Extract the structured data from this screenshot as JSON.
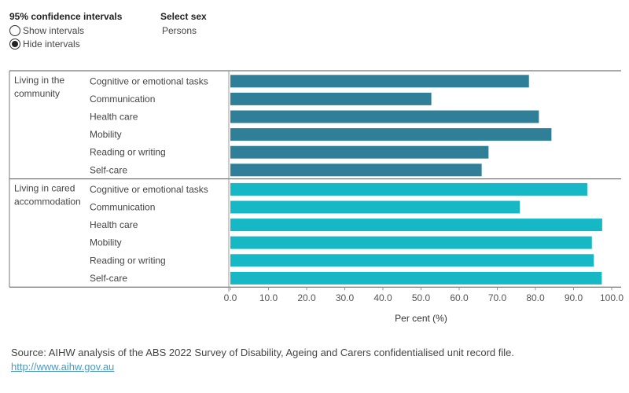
{
  "controls": {
    "ci_title": "95% confidence intervals",
    "ci_options": [
      {
        "label": "Show intervals",
        "selected": false
      },
      {
        "label": "Hide intervals",
        "selected": true
      }
    ],
    "sex_title": "Select sex",
    "sex_value": "Persons"
  },
  "chart_data": {
    "type": "bar",
    "orientation": "horizontal",
    "xlabel": "Per cent (%)",
    "xlim": [
      0,
      100
    ],
    "xticks": [
      "0.0",
      "10.0",
      "20.0",
      "30.0",
      "40.0",
      "50.0",
      "60.0",
      "70.0",
      "80.0",
      "90.0",
      "100.0"
    ],
    "groups": [
      {
        "label": "Living in the community",
        "label_lines": [
          "Living in the",
          "community"
        ],
        "color": "#2f7f98",
        "categories": [
          "Cognitive or emotional tasks",
          "Communication",
          "Health care",
          "Mobility",
          "Reading or writing",
          "Self-care"
        ],
        "values": [
          78.3,
          52.7,
          80.9,
          84.2,
          67.7,
          65.9
        ]
      },
      {
        "label": "Living in cared accommodation",
        "label_lines": [
          "Living in cared",
          "accommodation"
        ],
        "color": "#17b8c6",
        "categories": [
          "Cognitive or emotional tasks",
          "Communication",
          "Health care",
          "Mobility",
          "Reading or writing",
          "Self-care"
        ],
        "values": [
          93.6,
          75.9,
          97.5,
          94.8,
          95.3,
          97.4
        ]
      }
    ]
  },
  "footer": {
    "source": "Source: AIHW analysis of the ABS 2022 Survey of Disability, Ageing and Carers confidentialised unit record file.",
    "link": "http://www.aihw.gov.au"
  }
}
